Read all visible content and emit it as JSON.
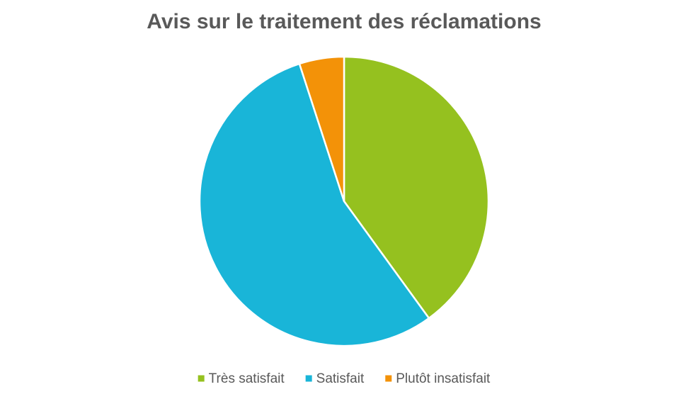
{
  "chart_data": {
    "type": "pie",
    "title": "Avis sur le traitement des réclamations",
    "categories": [
      "Très satisfait",
      "Satisfait",
      "Plutôt insatisfait"
    ],
    "values": [
      40,
      55,
      5
    ],
    "colors": [
      "#95c11f",
      "#19b5d8",
      "#f39208"
    ],
    "legend": "bottom"
  }
}
